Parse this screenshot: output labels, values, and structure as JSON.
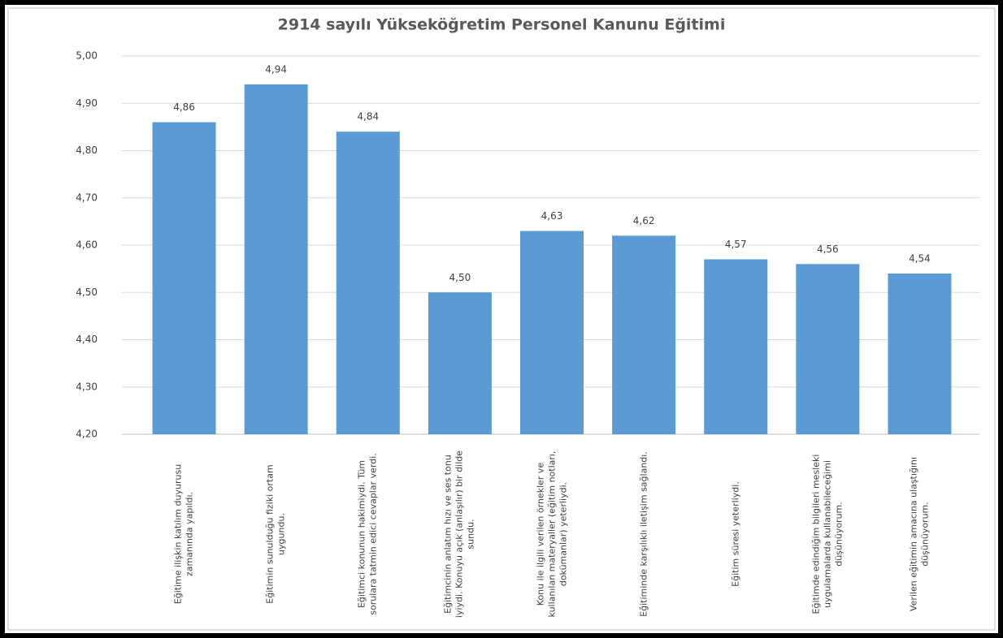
{
  "chart_data": {
    "type": "bar",
    "title": "2914 sayılı Yükseköğretim Personel Kanunu Eğitimi",
    "categories": [
      "Eğitime ilişkin katılım duyurusu zamanında yapıldı.",
      "Eğitimin sunulduğu fiziki ortam uygundu.",
      "Eğitimci konunun hakimiydi. Tüm sorulara tatmin edici cevaplar verdi.",
      "Eğitimcinin anlatım hızı ve ses tonu iyiydi. Konuyu açık (anlaşılır) bir dilde sundu.",
      "Konu ile ilgili verilen örnekler ve kullanılan materyaller (eğitim notları, dokümanlar) yeterliydi.",
      "Eğitiminde karşılıklı iletişim sağlandı.",
      "Eğitim süresi yeterliydi.",
      "Eğitimde edindiğim bilgileri mesleki uygulamalarda kullanabileceğimi düşünüyorum.",
      "Verilen eğitimin amacına ulaştığını düşünüyorum."
    ],
    "values": [
      4.86,
      4.94,
      4.84,
      4.5,
      4.63,
      4.62,
      4.57,
      4.56,
      4.54
    ],
    "value_labels": [
      "4,86",
      "4,94",
      "4,84",
      "4,50",
      "4,63",
      "4,62",
      "4,57",
      "4,56",
      "4,54"
    ],
    "color": "#5b9bd5",
    "ylim": [
      4.2,
      5.0
    ],
    "yticks": [
      {
        "value": 4.2,
        "label": "4,20"
      },
      {
        "value": 4.3,
        "label": "4,30"
      },
      {
        "value": 4.4,
        "label": "4,40"
      },
      {
        "value": 4.5,
        "label": "4,50"
      },
      {
        "value": 4.6,
        "label": "4,60"
      },
      {
        "value": 4.7,
        "label": "4,70"
      },
      {
        "value": 4.8,
        "label": "4,80"
      },
      {
        "value": 4.9,
        "label": "4,90"
      },
      {
        "value": 5.0,
        "label": "5,00"
      }
    ],
    "grid": true
  }
}
